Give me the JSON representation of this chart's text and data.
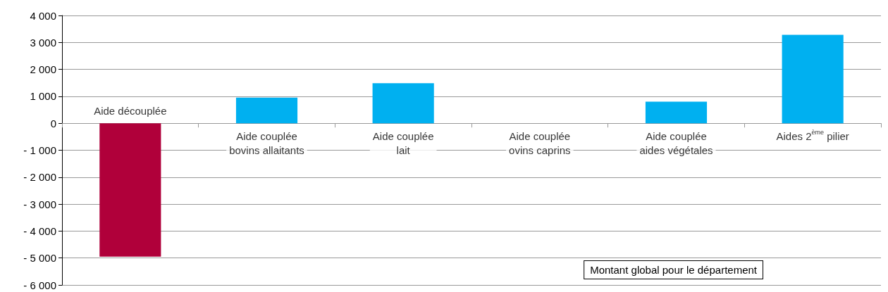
{
  "chart_data": {
    "type": "bar",
    "categories": [
      "Aide découplée",
      "Aide couplée\nbovins allaitants",
      "Aide couplée\nlait",
      "Aide couplée\novins caprins",
      "Aide couplée\naides végétales",
      "Aides 2$^{ème}$ pilier"
    ],
    "values": [
      -4950,
      950,
      1490,
      0,
      800,
      3280
    ],
    "colors": [
      "#b0003a",
      "#00b0f0",
      "#00b0f0",
      "#00b0f0",
      "#00b0f0",
      "#00b0f0"
    ],
    "ylim": [
      -6000,
      4000
    ],
    "yticks": [
      {
        "value": -6000,
        "label": "- 6 000"
      },
      {
        "value": -5000,
        "label": "- 5 000"
      },
      {
        "value": -4000,
        "label": "- 4 000"
      },
      {
        "value": -3000,
        "label": "- 3 000"
      },
      {
        "value": -2000,
        "label": "- 2 000"
      },
      {
        "value": -1000,
        "label": "- 1 000"
      },
      0,
      {
        "value": 1000,
        "label": "1 000"
      },
      {
        "value": 2000,
        "label": "2 000"
      },
      {
        "value": 3000,
        "label": "3 000"
      },
      {
        "value": 4000,
        "label": "4 000"
      }
    ],
    "grid": "y",
    "annotations": [
      "Montant global pour le département"
    ]
  }
}
